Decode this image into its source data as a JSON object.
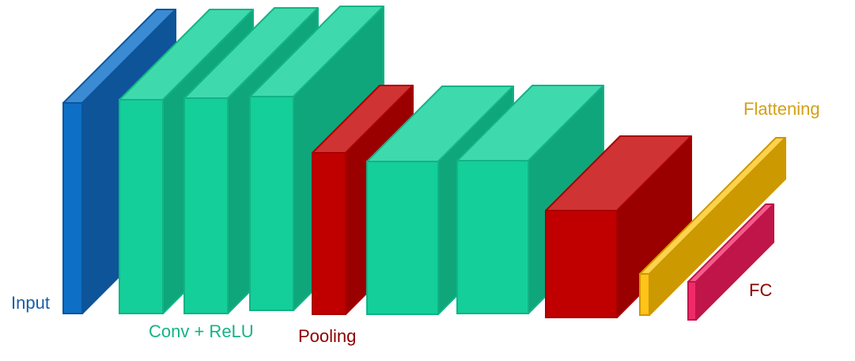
{
  "colors": {
    "input_front": "#0e6fc6",
    "input_side": "#0d5499",
    "input_top": "#3b8bd4",
    "conv_front": "#14cf99",
    "conv_side": "#0fa67b",
    "conv_top": "#3fd9ae",
    "conv_stroke": "#12b386",
    "pool_front": "#c00000",
    "pool_side": "#9a0000",
    "pool_top": "#cf3333",
    "pool_stroke": "#a80000",
    "flatten_front": "#ffc31a",
    "flatten_side": "#cc9900",
    "flatten_top": "#ffd24d",
    "fc_front": "#f02a6a",
    "fc_side": "#c01548",
    "fc_top": "#f55a8a",
    "label_input": "#1a5ea6",
    "label_conv": "#14b386",
    "label_pool": "#8b0000",
    "label_flatten": "#d4a017",
    "label_fc": "#8b0000"
  },
  "layers": [
    {
      "kind": "input",
      "name": "input-layer-block"
    },
    {
      "kind": "conv",
      "name": "conv-relu-block-1"
    },
    {
      "kind": "conv",
      "name": "conv-relu-block-2"
    },
    {
      "kind": "conv",
      "name": "conv-relu-block-3"
    },
    {
      "kind": "pool",
      "name": "pooling-block-1"
    },
    {
      "kind": "conv",
      "name": "conv-relu-block-4"
    },
    {
      "kind": "conv",
      "name": "conv-relu-block-5"
    },
    {
      "kind": "pool",
      "name": "pooling-block-2"
    },
    {
      "kind": "flatten",
      "name": "flattening-block"
    },
    {
      "kind": "fc",
      "name": "fc-block"
    }
  ],
  "labels": {
    "input": "Input",
    "conv": "Conv + ReLU",
    "pool": "Pooling",
    "flatten": "Flattening",
    "fc": "FC"
  }
}
